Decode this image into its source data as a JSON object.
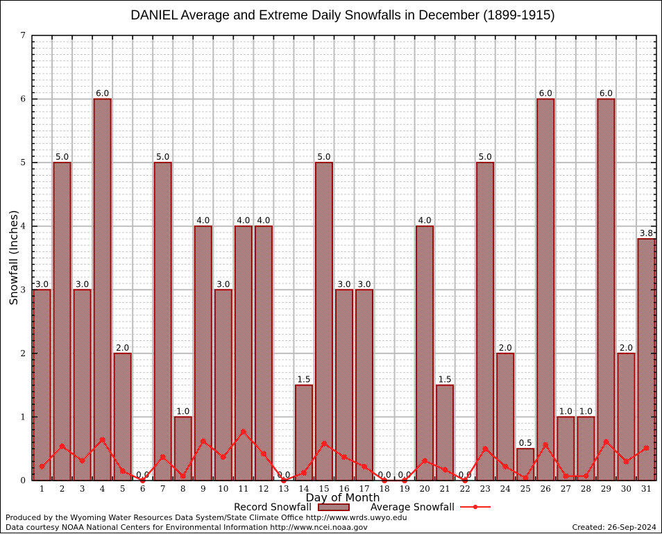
{
  "chart_data": {
    "type": "bar",
    "title": "DANIEL Average and Extreme Daily Snowfalls in December (1899-1915)",
    "xlabel": "Day of Month",
    "ylabel": "Snowfall (Inches)",
    "ylim": [
      0,
      7
    ],
    "yticks": [
      "0",
      "1",
      "2",
      "3",
      "4",
      "5",
      "6",
      "7"
    ],
    "minor_grid_step": 0.1,
    "grid": true,
    "categories": [
      "1",
      "2",
      "3",
      "4",
      "5",
      "6",
      "7",
      "8",
      "9",
      "10",
      "11",
      "12",
      "13",
      "14",
      "15",
      "16",
      "17",
      "18",
      "19",
      "20",
      "21",
      "22",
      "23",
      "24",
      "25",
      "26",
      "27",
      "28",
      "29",
      "30",
      "31"
    ],
    "series": [
      {
        "name": "Record Snowfall",
        "type": "bar",
        "color": "#990000",
        "values": [
          3.0,
          5.0,
          3.0,
          6.0,
          2.0,
          0.0,
          5.0,
          1.0,
          4.0,
          3.0,
          4.0,
          4.0,
          0.0,
          1.5,
          5.0,
          3.0,
          3.0,
          0.0,
          0.0,
          4.0,
          1.5,
          0.0,
          5.0,
          2.0,
          0.5,
          6.0,
          1.0,
          1.0,
          6.0,
          2.0,
          3.8
        ],
        "labels": [
          "3.0",
          "5.0",
          "3.0",
          "6.0",
          "2.0",
          "0.0",
          "5.0",
          "1.0",
          "4.0",
          "3.0",
          "4.0",
          "4.0",
          "0.0",
          "1.5",
          "5.0",
          "3.0",
          "3.0",
          "0.0",
          "0.0",
          "4.0",
          "1.5",
          "0.0",
          "5.0",
          "2.0",
          "0.5",
          "6.0",
          "1.0",
          "1.0",
          "6.0",
          "2.0",
          "3.8"
        ]
      },
      {
        "name": "Average Snowfall",
        "type": "line",
        "color": "#ff2020",
        "values": [
          0.22,
          0.54,
          0.31,
          0.64,
          0.15,
          0.0,
          0.37,
          0.07,
          0.62,
          0.37,
          0.77,
          0.42,
          0.0,
          0.12,
          0.58,
          0.37,
          0.22,
          0.0,
          0.0,
          0.31,
          0.17,
          0.0,
          0.5,
          0.22,
          0.04,
          0.56,
          0.07,
          0.07,
          0.61,
          0.3,
          0.51
        ]
      }
    ],
    "legend": {
      "placement": "bottom",
      "items": [
        "Record Snowfall",
        "Average Snowfall"
      ]
    }
  },
  "footer": {
    "line1": "Produced by the Wyoming Water Resources Data System/State Climate Office http://www.wrds.uwyo.edu",
    "line2": "Data courtesy NOAA National Centers for Environmental Information http://www.ncei.noaa.gov",
    "created": "Created: 26-Sep-2024"
  }
}
